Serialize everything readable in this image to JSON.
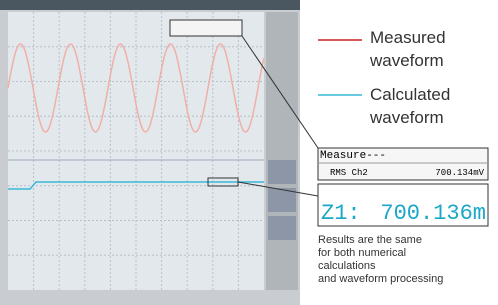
{
  "legend": [
    {
      "lines": [
        "Measured",
        "waveform"
      ]
    },
    {
      "lines": [
        "Calculated",
        "waveform"
      ]
    }
  ],
  "measure_panel": {
    "title": "Measure---",
    "name": "RMS Ch2",
    "value": "700.134mV"
  },
  "zoom": {
    "label": "Z1:",
    "value": "700.136m"
  },
  "note": {
    "lines": [
      "Results are the same",
      "for both numerical",
      "calculations",
      "and waveform processing"
    ]
  }
}
